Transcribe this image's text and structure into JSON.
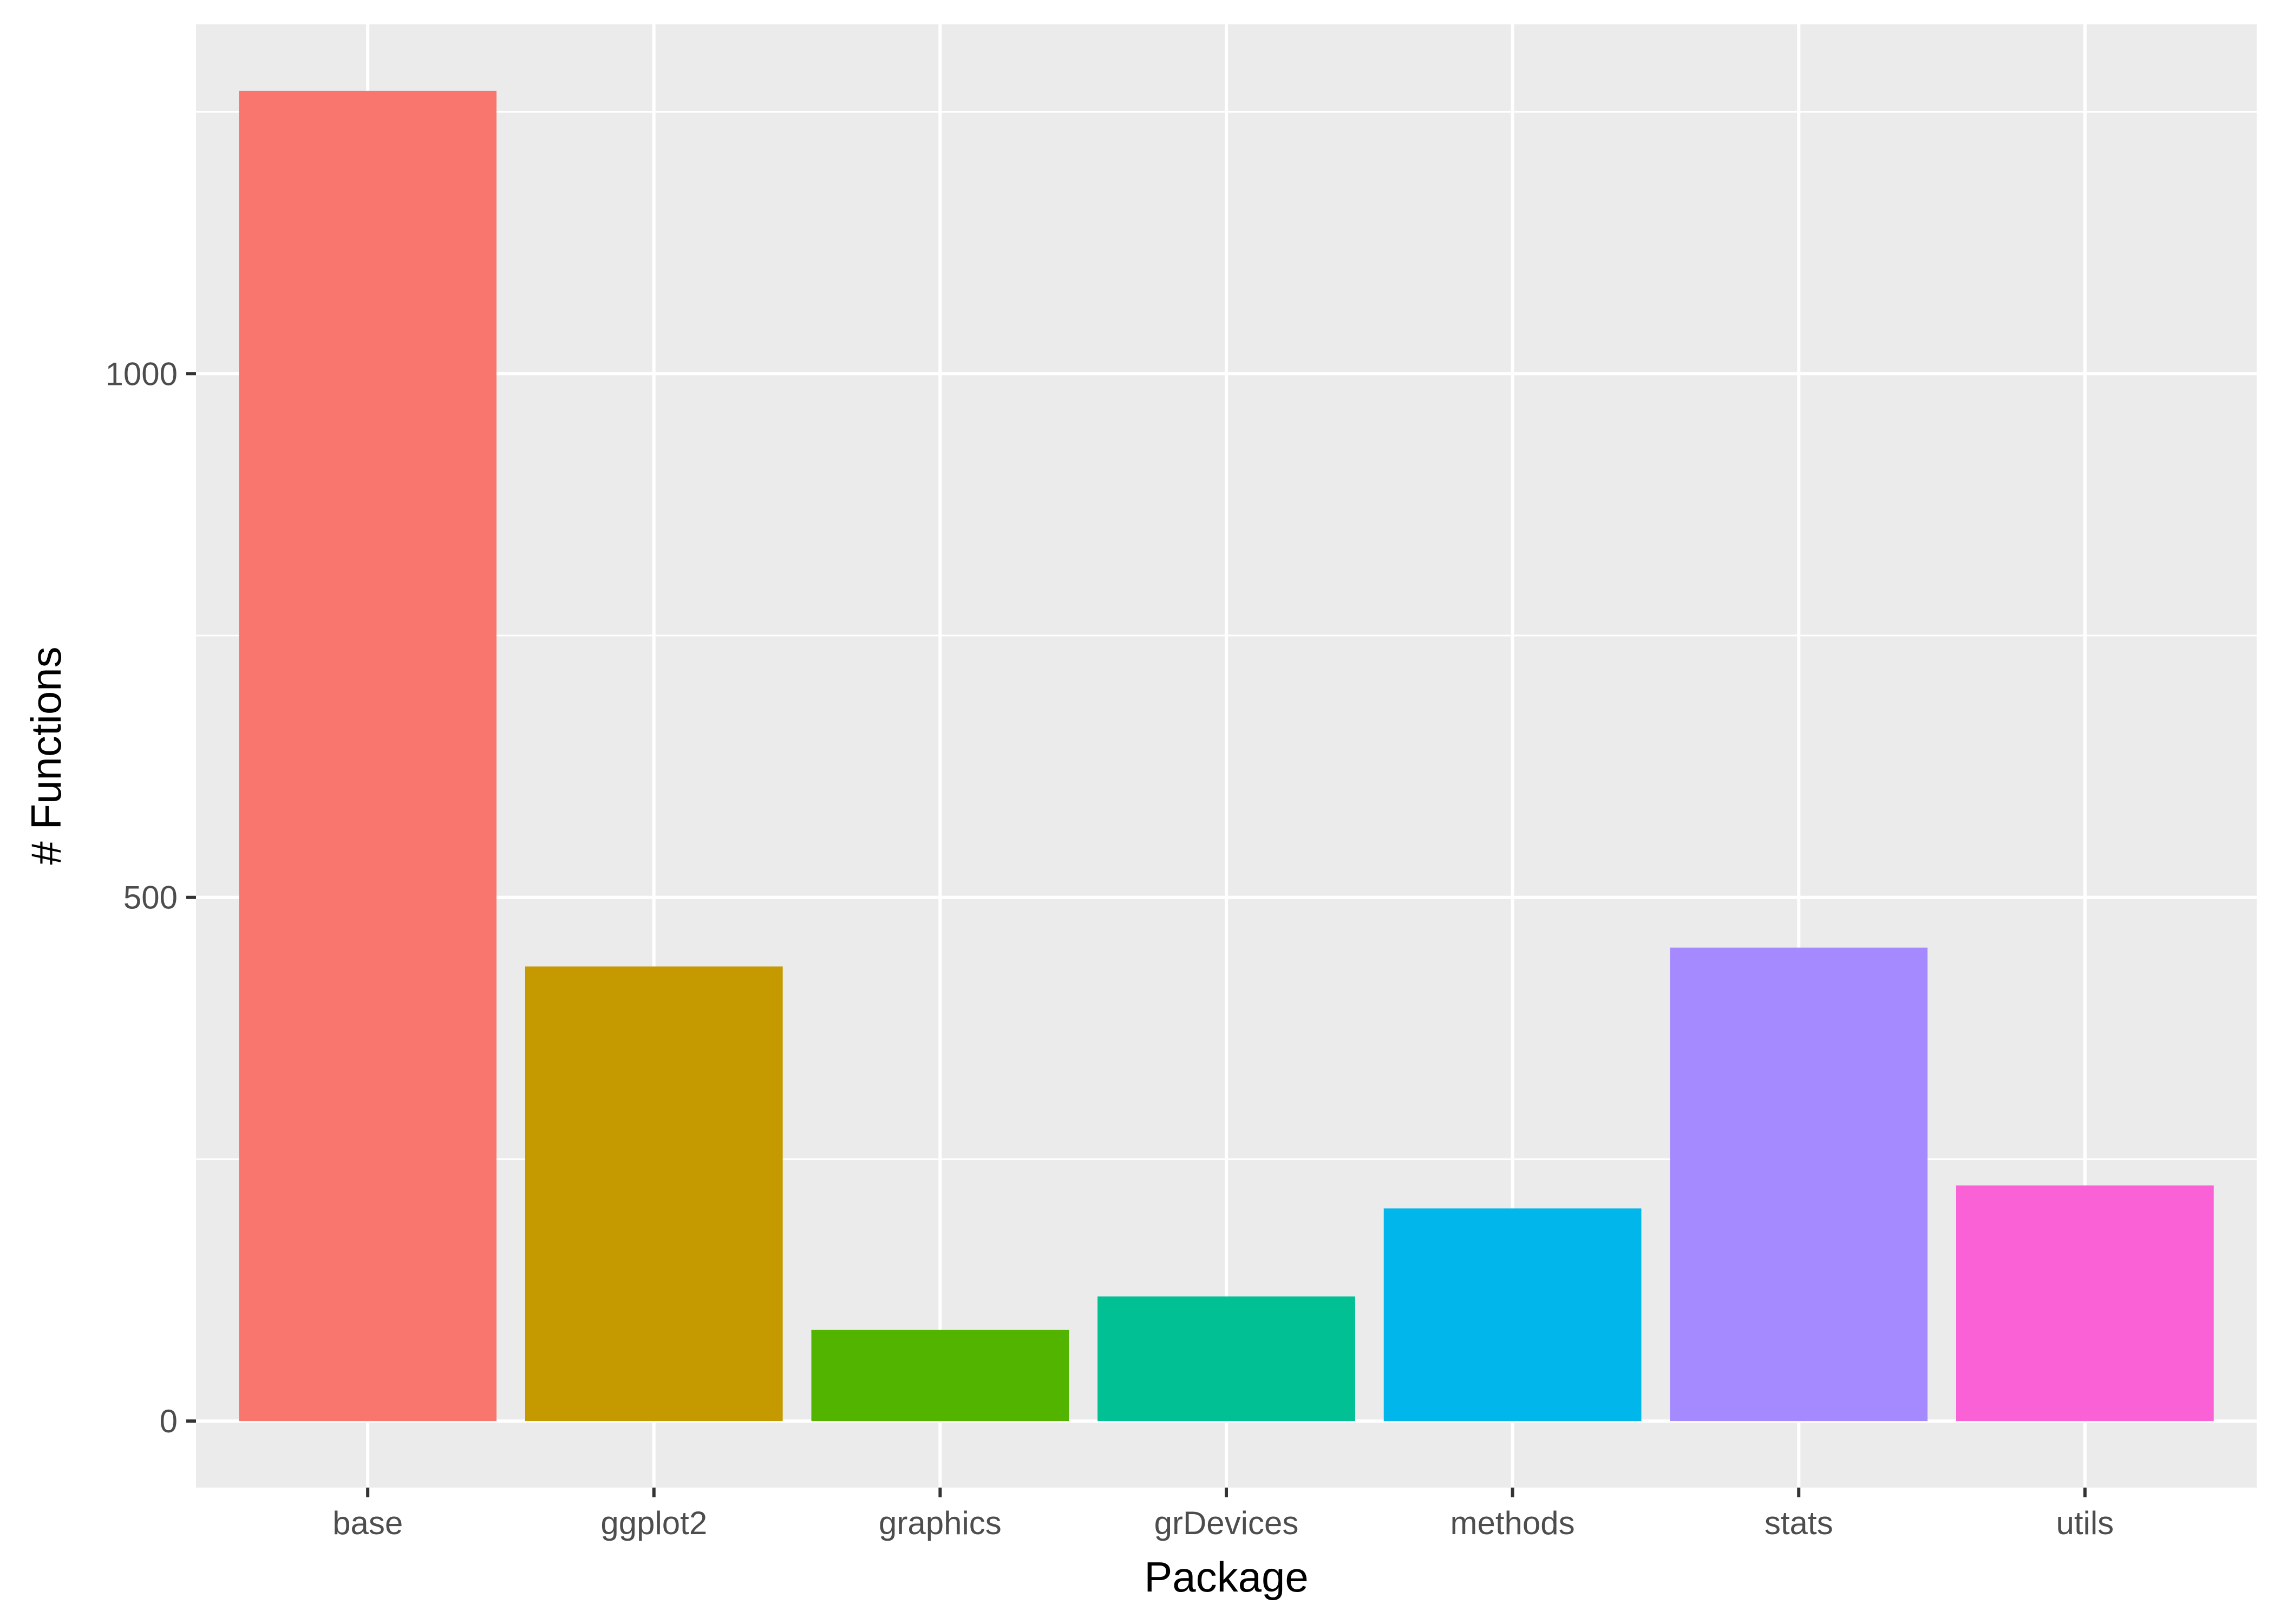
{
  "chart_data": {
    "type": "bar",
    "categories": [
      "base",
      "ggplot2",
      "graphics",
      "grDevices",
      "methods",
      "stats",
      "utils"
    ],
    "values": [
      1270,
      434,
      87,
      119,
      203,
      452,
      225
    ],
    "colors": [
      "#F8766D",
      "#C49A00",
      "#53B400",
      "#00C094",
      "#00B6EB",
      "#A58AFF",
      "#FB61D7"
    ],
    "xlabel": "Package",
    "ylabel": "# Functions",
    "yticks": [
      0,
      500,
      1000
    ],
    "ylim": [
      -63.5,
      1333.5
    ],
    "grid": true,
    "panel_background": "#EBEBEB",
    "grid_color": "#FFFFFF"
  }
}
